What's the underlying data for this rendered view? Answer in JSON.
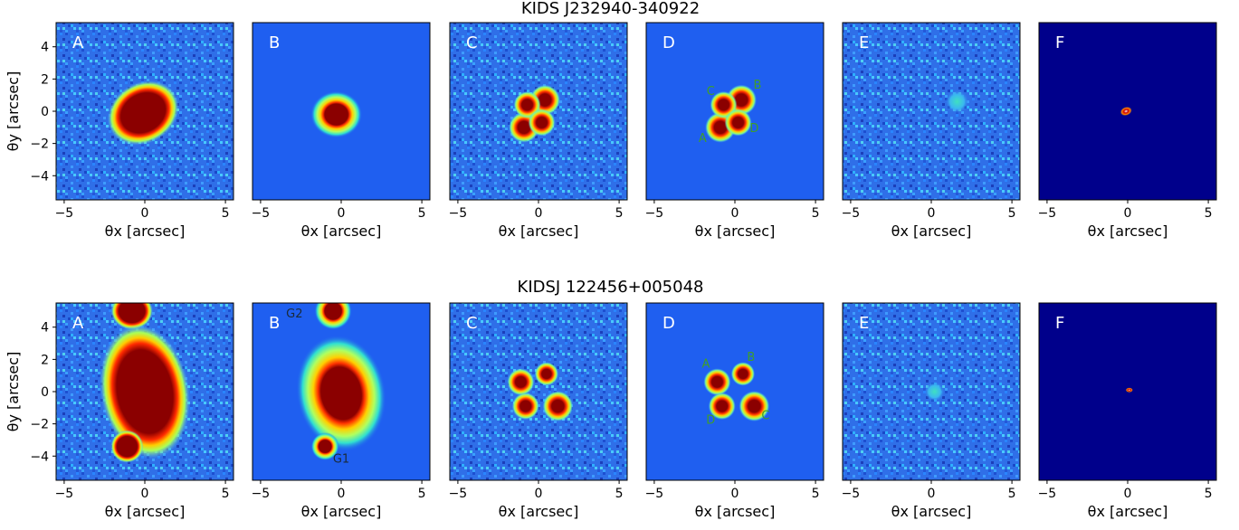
{
  "figure": {
    "rows": [
      {
        "title": "KIDS J232940-340922",
        "panels": [
          {
            "label": "A",
            "kind": "obs",
            "bg": "#2f6fe8",
            "blobs": [
              {
                "x": -0.1,
                "y": -0.1,
                "rx": 1.6,
                "ry": 1.3,
                "rot": -30,
                "type": "big"
              }
            ],
            "annotations": []
          },
          {
            "label": "B",
            "kind": "model_smooth",
            "bg": "#1f5ff0",
            "blobs": [
              {
                "x": -0.3,
                "y": -0.2,
                "rx": 1.1,
                "ry": 1.0,
                "rot": 0,
                "type": "galaxy"
              }
            ],
            "annotations": []
          },
          {
            "label": "C",
            "kind": "noise",
            "bg": "#2f6fe8",
            "blobs": [
              {
                "x": -0.9,
                "y": -1.0,
                "r": 0.45
              },
              {
                "x": 0.4,
                "y": 0.7,
                "r": 0.45
              },
              {
                "x": -0.7,
                "y": 0.4,
                "r": 0.4
              },
              {
                "x": 0.2,
                "y": -0.7,
                "r": 0.4
              }
            ],
            "annotations": []
          },
          {
            "label": "D",
            "kind": "model_points",
            "bg": "#1f5ff0",
            "blobs": [
              {
                "x": -0.9,
                "y": -1.0,
                "r": 0.45
              },
              {
                "x": 0.4,
                "y": 0.7,
                "r": 0.45
              },
              {
                "x": -0.7,
                "y": 0.4,
                "r": 0.4
              },
              {
                "x": 0.2,
                "y": -0.7,
                "r": 0.4
              }
            ],
            "annotations": [
              {
                "text": "A",
                "x": -2.0,
                "y": -1.9
              },
              {
                "text": "B",
                "x": 1.4,
                "y": 1.4
              },
              {
                "text": "C",
                "x": -1.5,
                "y": 1.0
              },
              {
                "text": "D",
                "x": 1.2,
                "y": -1.3
              }
            ]
          },
          {
            "label": "E",
            "kind": "residual",
            "bg": "#2f6fe8",
            "blobs": [
              {
                "x": 1.6,
                "y": 0.6,
                "r": 0.35,
                "type": "faint"
              }
            ],
            "annotations": []
          },
          {
            "label": "F",
            "kind": "source",
            "bg": "#00008b",
            "blobs": [
              {
                "x": -0.1,
                "y": 0.0,
                "rx": 0.25,
                "ry": 0.18,
                "rot": -20,
                "type": "tiny"
              }
            ],
            "annotations": []
          }
        ]
      },
      {
        "title": "KIDSJ 122456+005048",
        "panels": [
          {
            "label": "A",
            "kind": "obs",
            "bg": "#2f6fe8",
            "blobs": [
              {
                "x": -0.8,
                "y": 5.0,
                "rx": 0.9,
                "ry": 0.8,
                "rot": 0,
                "type": "big"
              },
              {
                "x": 0.0,
                "y": 0.0,
                "rx": 1.9,
                "ry": 2.9,
                "rot": -10,
                "type": "big"
              },
              {
                "x": -1.1,
                "y": -3.4,
                "rx": 0.7,
                "ry": 0.7,
                "rot": 0,
                "type": "big"
              }
            ],
            "annotations": []
          },
          {
            "label": "B",
            "kind": "model_smooth",
            "bg": "#1f5ff0",
            "blobs": [
              {
                "x": -0.5,
                "y": 5.0,
                "rx": 0.8,
                "ry": 0.8,
                "rot": 0,
                "type": "galaxy"
              },
              {
                "x": 0.0,
                "y": -0.1,
                "rx": 1.9,
                "ry": 2.5,
                "rot": -10,
                "type": "galaxy"
              },
              {
                "x": -1.0,
                "y": -3.4,
                "rx": 0.6,
                "ry": 0.6,
                "rot": 0,
                "type": "galaxy"
              }
            ],
            "annotations": [
              {
                "text": "G2",
                "x": -2.9,
                "y": 4.6,
                "dark": true
              },
              {
                "text": "G1",
                "x": 0.0,
                "y": -4.4,
                "dark": true
              }
            ]
          },
          {
            "label": "C",
            "kind": "noise",
            "bg": "#2f6fe8",
            "blobs": [
              {
                "x": -1.1,
                "y": 0.6,
                "r": 0.4
              },
              {
                "x": 0.5,
                "y": 1.1,
                "r": 0.35
              },
              {
                "x": 1.2,
                "y": -0.9,
                "r": 0.45
              },
              {
                "x": -0.8,
                "y": -0.9,
                "r": 0.4
              }
            ],
            "annotations": []
          },
          {
            "label": "D",
            "kind": "model_points",
            "bg": "#1f5ff0",
            "blobs": [
              {
                "x": -1.1,
                "y": 0.6,
                "r": 0.4
              },
              {
                "x": 0.5,
                "y": 1.1,
                "r": 0.35
              },
              {
                "x": 1.2,
                "y": -0.9,
                "r": 0.45
              },
              {
                "x": -0.8,
                "y": -0.9,
                "r": 0.4
              }
            ],
            "annotations": [
              {
                "text": "A",
                "x": -1.8,
                "y": 1.5
              },
              {
                "text": "B",
                "x": 1.0,
                "y": 1.9
              },
              {
                "text": "C",
                "x": 1.9,
                "y": -1.7
              },
              {
                "text": "D",
                "x": -1.5,
                "y": -2.0
              }
            ]
          },
          {
            "label": "E",
            "kind": "residual",
            "bg": "#2f6fe8",
            "blobs": [
              {
                "x": 0.2,
                "y": 0.0,
                "r": 0.3,
                "type": "faint"
              }
            ],
            "annotations": []
          },
          {
            "label": "F",
            "kind": "source",
            "bg": "#00008b",
            "blobs": [
              {
                "x": 0.1,
                "y": 0.1,
                "rx": 0.15,
                "ry": 0.1,
                "rot": 0,
                "type": "tiny"
              }
            ],
            "annotations": []
          }
        ]
      }
    ],
    "x_axis_label": "θx [arcsec]",
    "y_axis_label": "θy [arcsec]",
    "x_ticks": [
      "−5",
      "0",
      "5"
    ],
    "y_ticks": [
      "4",
      "2",
      "0",
      "−2",
      "−4"
    ],
    "range": [
      -5.5,
      5.5
    ]
  }
}
